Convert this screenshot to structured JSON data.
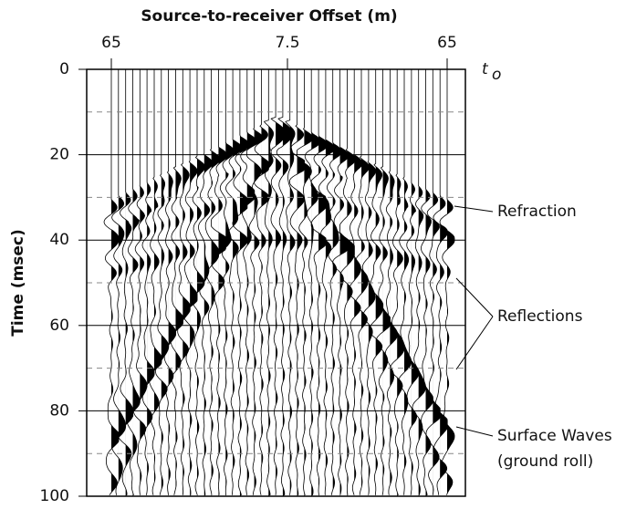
{
  "chart_data": {
    "type": "seismic",
    "title": "Source-to-receiver Offset (m)",
    "ylabel": "Time (msec)",
    "offset_labels": [
      65,
      7.5,
      65
    ],
    "time_label": "t",
    "time_sub": "o",
    "ylim": [
      0,
      100
    ],
    "yticks": [
      0,
      20,
      40,
      60,
      80,
      100
    ],
    "minor_yticks": [
      10,
      30,
      50,
      70,
      90
    ],
    "grid": true,
    "annotations": [
      "Refraction",
      "Reflections",
      "Surface Waves",
      "(ground roll)"
    ]
  }
}
